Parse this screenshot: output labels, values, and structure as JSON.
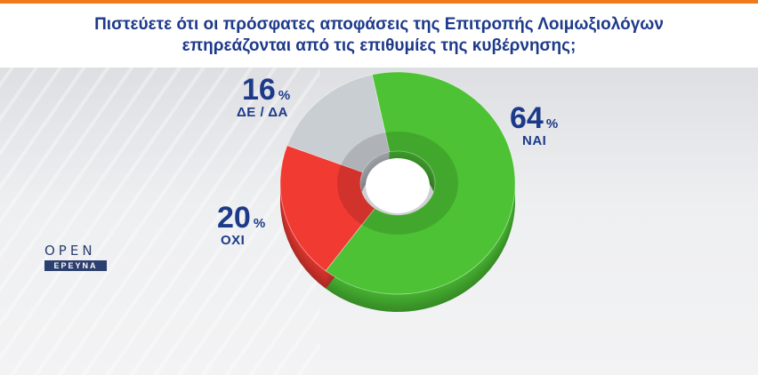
{
  "header": {
    "line1": "Πιστεύετε ότι οι πρόσφατες αποφάσεις της Επιτροπής Λοιμωξιολόγων",
    "line2": "επηρεάζονται από τις επιθυμίες της κυβέρνησης;"
  },
  "logo": {
    "word": "OPEN",
    "badge": "ΕΡΕΥΝΑ"
  },
  "colors": {
    "accent": "#f07a1a",
    "title": "#1d3a8a",
    "yes": "#4cc234",
    "no": "#f03a32",
    "dk": "#c9ced3"
  },
  "chart_data": {
    "type": "pie",
    "style": "3d-donut",
    "title": "Πιστεύετε ότι οι πρόσφατες αποφάσεις της Επιτροπής Λοιμωξιολόγων επηρεάζονται από τις επιθυμίες της κυβέρνησης;",
    "categories": [
      "ΝΑΙ",
      "ΟΧΙ",
      "ΔΕ / ΔΑ"
    ],
    "values": [
      64,
      20,
      16
    ],
    "unit": "%",
    "labels": [
      {
        "name": "ΝΑΙ",
        "value": "64",
        "unit": "%"
      },
      {
        "name": "ΟΧΙ",
        "value": "20",
        "unit": "%"
      },
      {
        "name": "ΔΕ / ΔΑ",
        "value": "16",
        "unit": "%"
      }
    ]
  }
}
